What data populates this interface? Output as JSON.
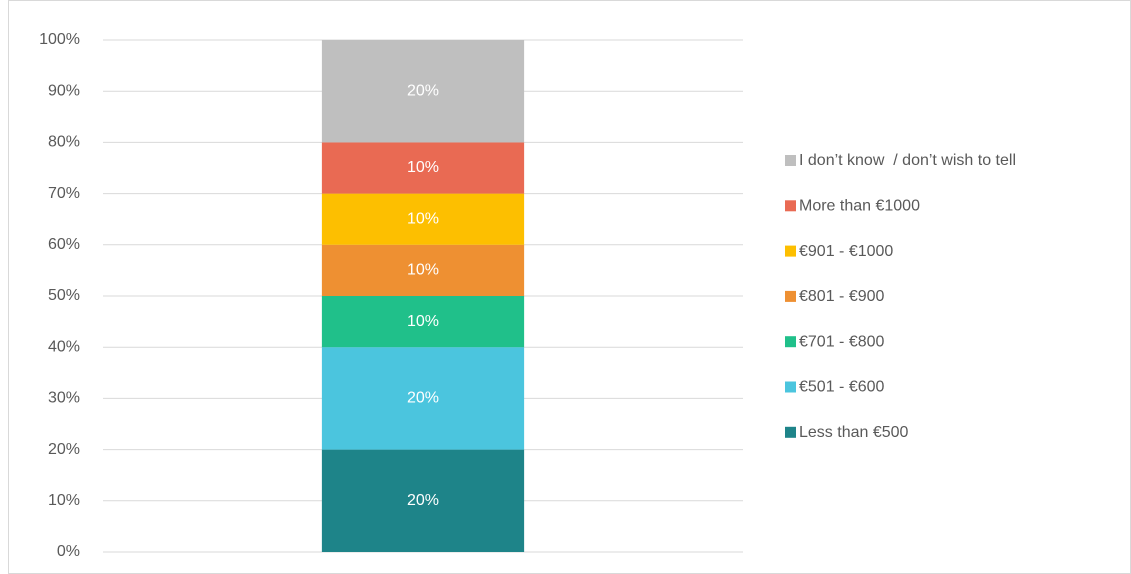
{
  "chart_data": {
    "type": "stacked_bar",
    "categories": [
      null
    ],
    "series": [
      {
        "name": "Less than €500",
        "color": "#1e8489",
        "values": [
          20
        ],
        "value_labels": [
          "20%"
        ]
      },
      {
        "name": "€501 - €600",
        "color": "#4bc5de",
        "values": [
          20
        ],
        "value_labels": [
          "20%"
        ]
      },
      {
        "name": "€701 - €800",
        "color": "#20c08a",
        "values": [
          10
        ],
        "value_labels": [
          "10%"
        ]
      },
      {
        "name": "€801 - €900",
        "color": "#ee9032",
        "values": [
          10
        ],
        "value_labels": [
          "10%"
        ]
      },
      {
        "name": "€901 - €1000",
        "color": "#fdbf00",
        "values": [
          10
        ],
        "value_labels": [
          "10%"
        ]
      },
      {
        "name": "More than €1000",
        "color": "#e96a53",
        "values": [
          10
        ],
        "value_labels": [
          "10%"
        ]
      },
      {
        "name": "I don’t know  / don’t wish to tell",
        "color": "#bfbfbf",
        "values": [
          20
        ],
        "value_labels": [
          "20%"
        ]
      }
    ],
    "ylim": [
      0,
      100
    ],
    "yticks": [
      {
        "value": 0,
        "label": "0%"
      },
      {
        "value": 10,
        "label": "10%"
      },
      {
        "value": 20,
        "label": "20%"
      },
      {
        "value": 30,
        "label": "30%"
      },
      {
        "value": 40,
        "label": "40%"
      },
      {
        "value": 50,
        "label": "50%"
      },
      {
        "value": 60,
        "label": "60%"
      },
      {
        "value": 70,
        "label": "70%"
      },
      {
        "value": 80,
        "label": "80%"
      },
      {
        "value": 90,
        "label": "90%"
      },
      {
        "value": 100,
        "label": "100%"
      }
    ],
    "grid": true,
    "legend": "right"
  }
}
